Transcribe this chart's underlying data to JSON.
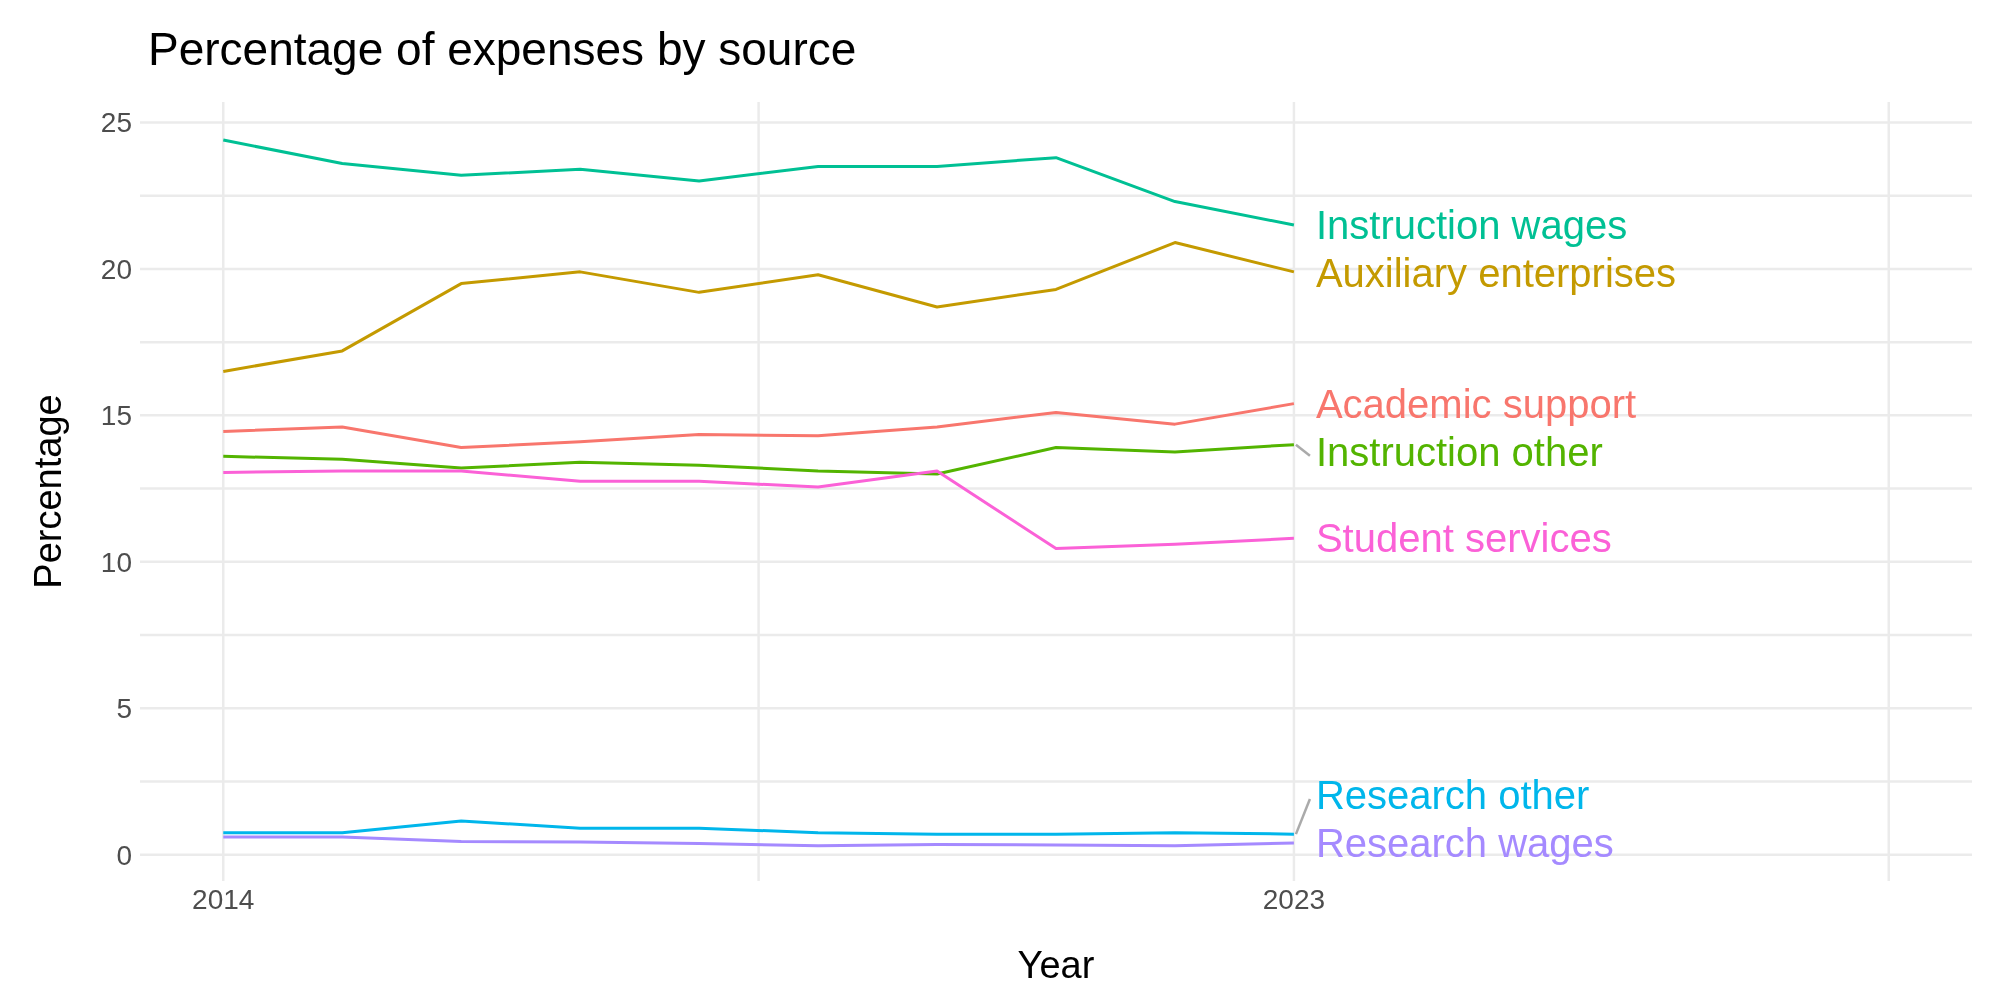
{
  "chart_data": {
    "type": "line",
    "title": "Percentage of expenses by source",
    "xlabel": "Year",
    "ylabel": "Percentage",
    "x": [
      2014,
      2015,
      2016,
      2017,
      2018,
      2019,
      2020,
      2021,
      2022,
      2023
    ],
    "xlim": [
      2013.3,
      2028.7
    ],
    "xticks": [
      2014,
      {
        "value": 2018.5,
        "label": null
      },
      2023,
      {
        "value": 2028,
        "label": null
      }
    ],
    "ylim": [
      -0.9,
      25.7
    ],
    "yticks": [
      0,
      {
        "value": 2.5,
        "label": null
      },
      5,
      {
        "value": 7.5,
        "label": null
      },
      10,
      {
        "value": 12.5,
        "label": null
      },
      15,
      {
        "value": 17.5,
        "label": null
      },
      20,
      {
        "value": 22.5,
        "label": null
      },
      25
    ],
    "grid": true,
    "line_style": "solid",
    "marker": "none",
    "series": [
      {
        "name": "Instruction wages",
        "color": "#00c094",
        "values": [
          24.4,
          23.6,
          23.2,
          23.4,
          23.0,
          23.5,
          23.5,
          23.8,
          22.3,
          21.5
        ]
      },
      {
        "name": "Auxiliary enterprises",
        "color": "#c49a00",
        "values": [
          16.5,
          17.2,
          19.5,
          19.9,
          19.2,
          19.8,
          18.7,
          19.3,
          20.9,
          19.9
        ]
      },
      {
        "name": "Academic support",
        "color": "#f8766d",
        "values": [
          14.45,
          14.6,
          13.9,
          14.1,
          14.35,
          14.3,
          14.6,
          15.1,
          14.7,
          15.4
        ]
      },
      {
        "name": "Instruction other",
        "color": "#53b400",
        "values": [
          13.6,
          13.5,
          13.2,
          13.4,
          13.3,
          13.1,
          13.0,
          13.9,
          13.75,
          14.0
        ]
      },
      {
        "name": "Student services",
        "color": "#fb61d7",
        "values": [
          13.05,
          13.1,
          13.1,
          12.75,
          12.75,
          12.55,
          13.1,
          10.45,
          10.6,
          10.8
        ]
      },
      {
        "name": "Research other",
        "color": "#00b6eb",
        "values": [
          0.75,
          0.75,
          1.15,
          0.9,
          0.9,
          0.75,
          0.7,
          0.7,
          0.75,
          0.7
        ]
      },
      {
        "name": "Research wages",
        "color": "#a58aff",
        "values": [
          0.6,
          0.6,
          0.45,
          0.43,
          0.38,
          0.3,
          0.35,
          0.33,
          0.3,
          0.4
        ]
      }
    ]
  }
}
